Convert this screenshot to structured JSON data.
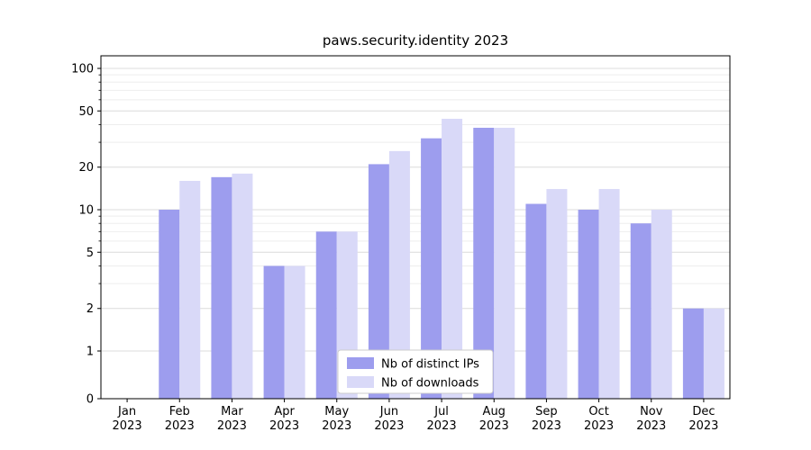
{
  "figure": {
    "title": "paws.security.identity 2023"
  },
  "colors": {
    "background": "#ffffff",
    "axis": "#000000",
    "text": "#000000",
    "grid_major": "#dcdcdc",
    "grid_minor": "#eeeeee",
    "legend_border": "#cccccc",
    "legend_background": "#ffffff"
  },
  "chart_data": {
    "type": "bar",
    "title": "paws.security.identity 2023",
    "categories": [
      "Jan",
      "Feb",
      "Mar",
      "Apr",
      "May",
      "Jun",
      "Jul",
      "Aug",
      "Sep",
      "Oct",
      "Nov",
      "Dec"
    ],
    "category_year": "2023",
    "series": [
      {
        "name": "Nb of distinct IPs",
        "color": "#9d9dee",
        "values": [
          0,
          10,
          17,
          4,
          7,
          21,
          32,
          38,
          11,
          10,
          8,
          2
        ]
      },
      {
        "name": "Nb of downloads",
        "color": "#d9d9f8",
        "values": [
          0,
          16,
          18,
          4,
          7,
          26,
          44,
          38,
          14,
          14,
          10,
          2
        ]
      }
    ],
    "xlabel": "",
    "ylabel": "",
    "yscale": "symlog",
    "yticks": [
      0,
      1,
      2,
      5,
      10,
      20,
      50,
      100
    ],
    "ylim": [
      0,
      130
    ],
    "grid": true,
    "legend_position": "lower center"
  }
}
